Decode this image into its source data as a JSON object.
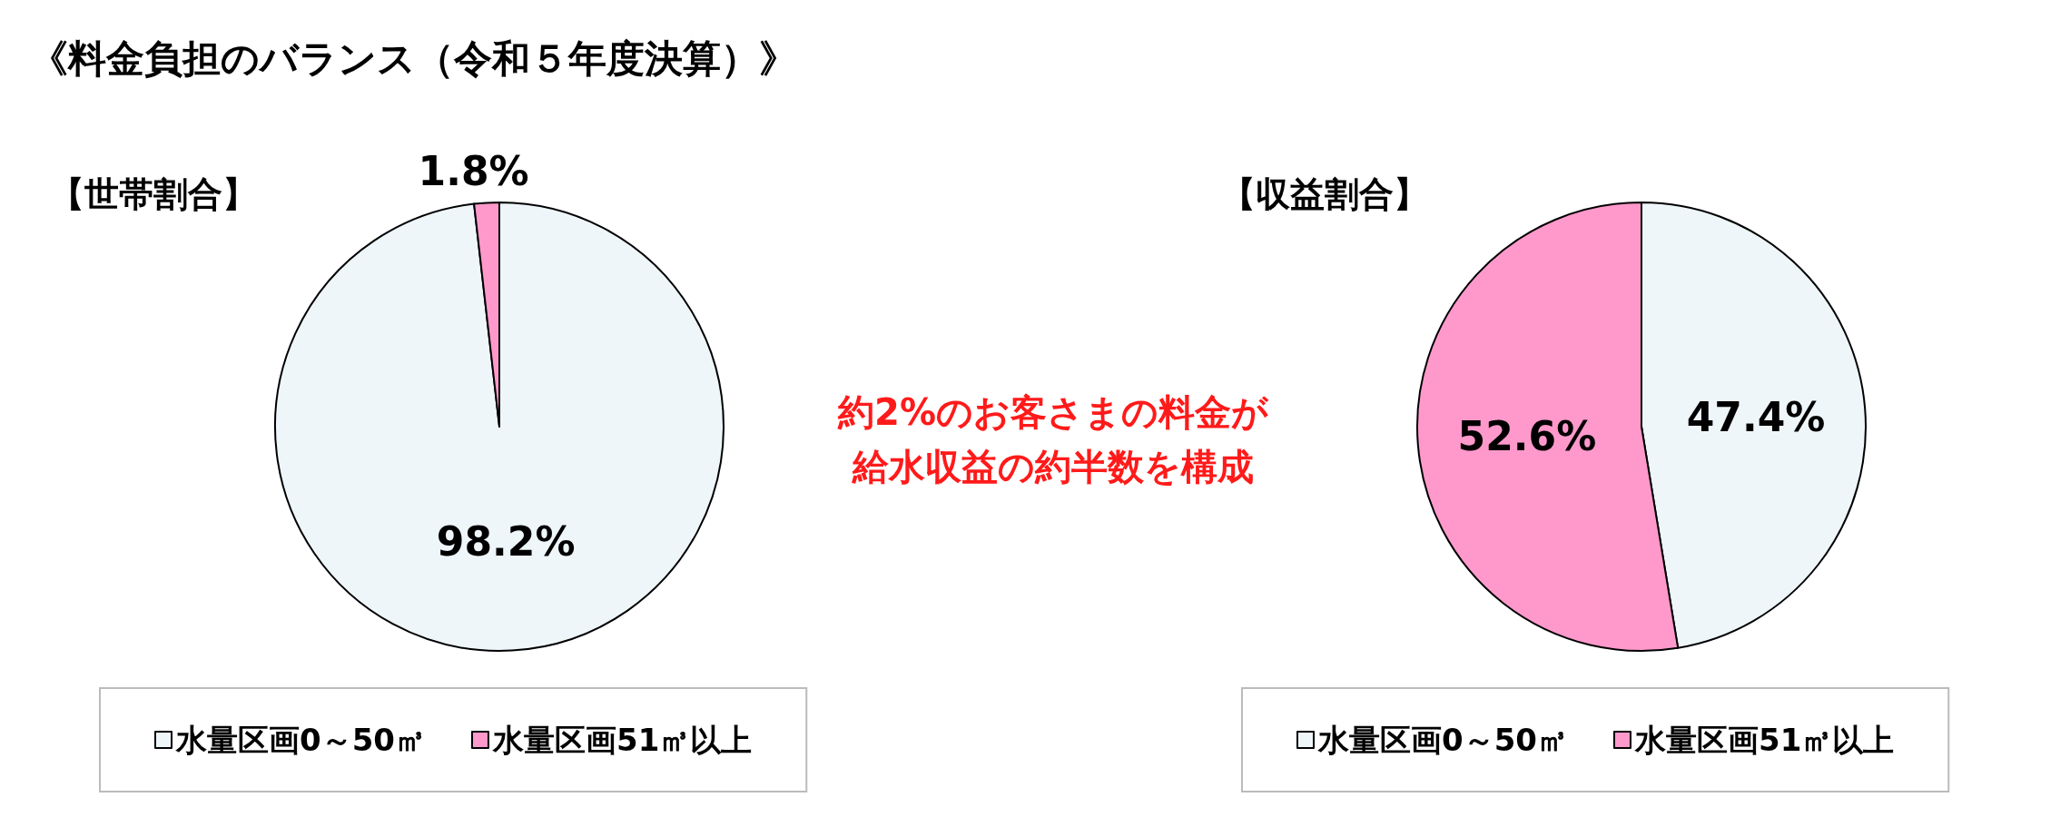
{
  "chart_data": [
    {
      "type": "other",
      "title": "《料金負担のバランス（令和５年度決算）》"
    },
    {
      "type": "pie",
      "title": "【世帯割合】",
      "categories": [
        "水量区画0～50㎥",
        "水量区画51㎥以上"
      ],
      "values": [
        98.2,
        1.8
      ],
      "colors": [
        "#eef6fa",
        "#ff99cc"
      ],
      "value_labels": [
        "98.2%",
        "1.8%"
      ],
      "legend": "bottom"
    },
    {
      "type": "other",
      "annotations": [
        "約2%のお客さまの料金が",
        "給水収益の約半数を構成"
      ]
    },
    {
      "type": "pie",
      "title": "【収益割合】",
      "categories": [
        "水量区画0～50㎥",
        "水量区画51㎥以上"
      ],
      "values": [
        47.4,
        52.6
      ],
      "colors": [
        "#eef6fa",
        "#ff99cc"
      ],
      "value_labels": [
        "47.4%",
        "52.6%"
      ],
      "legend": "bottom"
    }
  ]
}
